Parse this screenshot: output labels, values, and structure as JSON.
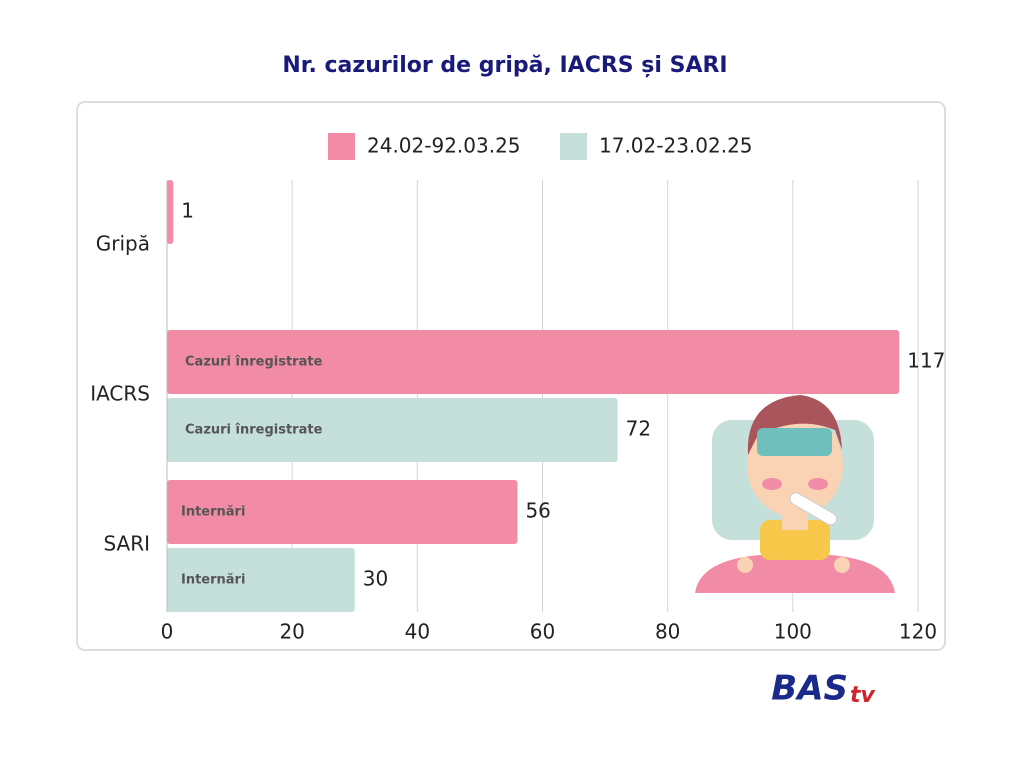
{
  "chart_data": {
    "type": "hbar",
    "title": "Nr. cazurilor de gripă, IACRS și SARI",
    "categories": [
      "Gripă",
      "IACRS",
      "SARI"
    ],
    "series": [
      {
        "name": "24.02-92.03.25",
        "color": "#f28ca6",
        "values": [
          1,
          117,
          56
        ],
        "bar_labels": [
          null,
          "Cazuri înregistrate",
          "Internări"
        ]
      },
      {
        "name": "17.02-23.02.25",
        "color": "#c5dfda",
        "values": [
          null,
          72,
          30
        ],
        "bar_labels": [
          null,
          "Cazuri înregistrate",
          "Internări"
        ]
      }
    ],
    "xlim": [
      0,
      120
    ],
    "xticks": [
      0,
      20,
      40,
      60,
      80,
      100,
      120
    ],
    "grid": true
  },
  "logo": {
    "main": "BAS",
    "sub": "tv"
  }
}
